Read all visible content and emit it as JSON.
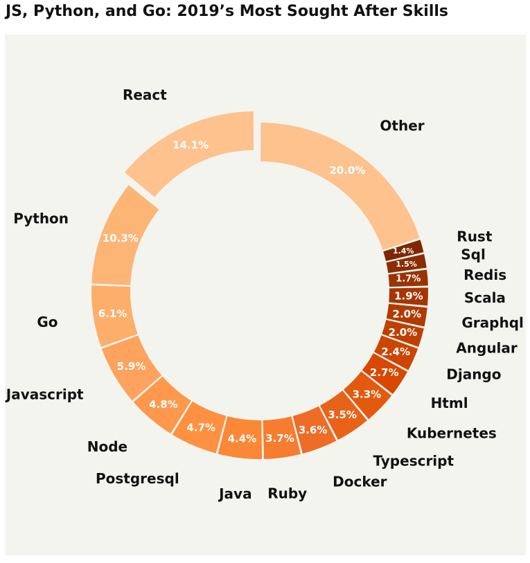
{
  "chart_data": {
    "type": "pie",
    "style": "donut",
    "title": "JS, Python, and Go: 2019’s Most Sought After Skills",
    "categories": [
      "Other",
      "Rust",
      "Sql",
      "Redis",
      "Scala",
      "Graphql",
      "Angular",
      "Django",
      "Html",
      "Kubernetes",
      "Typescript",
      "Docker",
      "Ruby",
      "Java",
      "Postgresql",
      "Node",
      "Javascript",
      "Go",
      "Python",
      "React"
    ],
    "values": [
      20.0,
      1.4,
      1.5,
      1.7,
      1.9,
      2.0,
      2.0,
      2.4,
      2.7,
      3.3,
      3.5,
      3.6,
      3.7,
      4.4,
      4.7,
      4.8,
      5.9,
      6.1,
      10.3,
      14.1
    ],
    "value_labels": [
      "20.0%",
      "1.4%",
      "1.5%",
      "1.7%",
      "1.9%",
      "2.0%",
      "2.0%",
      "2.4%",
      "2.7%",
      "3.3%",
      "3.5%",
      "3.6%",
      "3.7%",
      "4.4%",
      "4.7%",
      "4.8%",
      "5.9%",
      "6.1%",
      "10.3%",
      "14.1%"
    ],
    "colors": [
      "#fdc28d",
      "#7f2704",
      "#8b2d04",
      "#993304",
      "#a53603",
      "#b13b03",
      "#be4103",
      "#cc4602",
      "#d84801",
      "#e35a0e",
      "#e8631a",
      "#ee6c26",
      "#f67d2f",
      "#fb8836",
      "#fd9141",
      "#fd984c",
      "#fda35d",
      "#fdae6a",
      "#fdb576",
      "#fdc28d"
    ],
    "exploded": [
      "React"
    ],
    "start": "Other slice begins at 12 o'clock, proceeding clockwise"
  }
}
